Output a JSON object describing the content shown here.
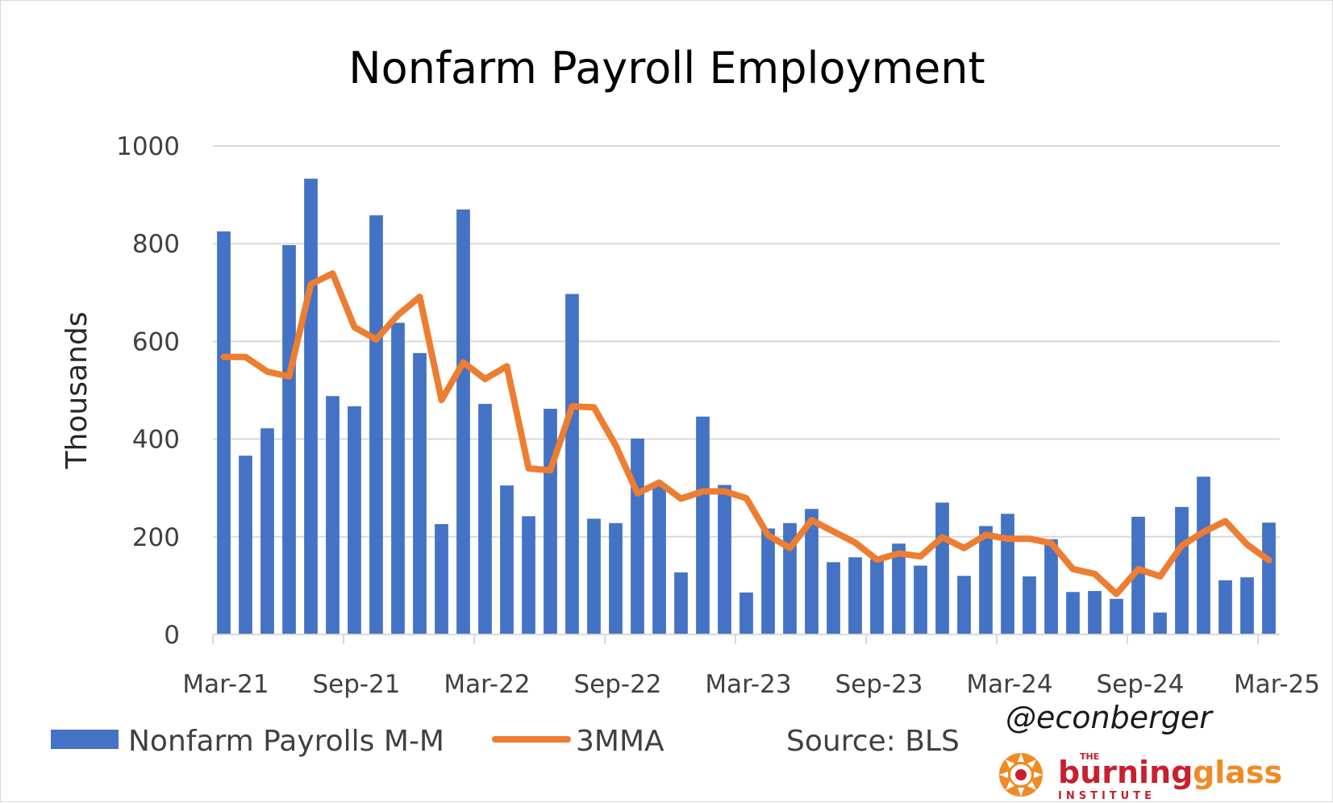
{
  "chart_data": {
    "type": "bar",
    "title": "Nonfarm Payroll Employment",
    "ylabel": "Thousands",
    "ylim": [
      0,
      1000
    ],
    "yticks": [
      0,
      200,
      400,
      600,
      800,
      1000
    ],
    "grid": true,
    "x_tick_labels": [
      "Mar-21",
      "Sep-21",
      "Mar-22",
      "Sep-22",
      "Mar-23",
      "Sep-23",
      "Mar-24",
      "Sep-24",
      "Mar-25"
    ],
    "categories": [
      "Mar-21",
      "Apr-21",
      "May-21",
      "Jun-21",
      "Jul-21",
      "Aug-21",
      "Sep-21",
      "Oct-21",
      "Nov-21",
      "Dec-21",
      "Jan-22",
      "Feb-22",
      "Mar-22",
      "Apr-22",
      "May-22",
      "Jun-22",
      "Jul-22",
      "Aug-22",
      "Sep-22",
      "Oct-22",
      "Nov-22",
      "Dec-22",
      "Jan-23",
      "Feb-23",
      "Mar-23",
      "Apr-23",
      "May-23",
      "Jun-23",
      "Jul-23",
      "Aug-23",
      "Sep-23",
      "Oct-23",
      "Nov-23",
      "Dec-23",
      "Jan-24",
      "Feb-24",
      "Mar-24",
      "Apr-24",
      "May-24",
      "Jun-24",
      "Jul-24",
      "Aug-24",
      "Sep-24",
      "Oct-24",
      "Nov-24",
      "Dec-24",
      "Jan-25",
      "Feb-25",
      "Mar-25"
    ],
    "series": [
      {
        "name": "Nonfarm Payrolls M-M",
        "type": "bar",
        "color": "#4472C4",
        "values": [
          825,
          366,
          422,
          797,
          933,
          488,
          467,
          858,
          638,
          576,
          226,
          870,
          472,
          305,
          242,
          462,
          697,
          237,
          228,
          401,
          305,
          127,
          446,
          306,
          86,
          217,
          228,
          257,
          148,
          158,
          154,
          186,
          141,
          270,
          120,
          222,
          247,
          119,
          195,
          87,
          89,
          73,
          241,
          45,
          261,
          323,
          111,
          117,
          229
        ]
      },
      {
        "name": "3MMA",
        "type": "line",
        "color": "#ED7D31",
        "values": [
          568,
          568,
          538,
          528,
          717,
          739,
          629,
          604,
          654,
          691,
          480,
          557,
          523,
          549,
          340,
          336,
          467,
          465,
          387,
          289,
          311,
          278,
          293,
          293,
          279,
          203,
          177,
          234,
          211,
          188,
          153,
          166,
          160,
          199,
          177,
          204,
          196,
          196,
          187,
          134,
          124,
          83,
          134,
          119,
          182,
          210,
          232,
          184,
          152
        ]
      }
    ],
    "legend_position": "bottom"
  },
  "legend": {
    "bar_label": "Nonfarm Payrolls M-M",
    "line_label": "3MMA",
    "source": "Source: BLS"
  },
  "watermark": {
    "handle": "@econberger",
    "logo_name": "burning-glass-institute-logo",
    "logo_top": "THE",
    "logo_word1": "burning",
    "logo_word2": "glass",
    "logo_bottom": "INSTITUTE",
    "logo_red": "#C8202F",
    "logo_orange": "#F08A24"
  }
}
